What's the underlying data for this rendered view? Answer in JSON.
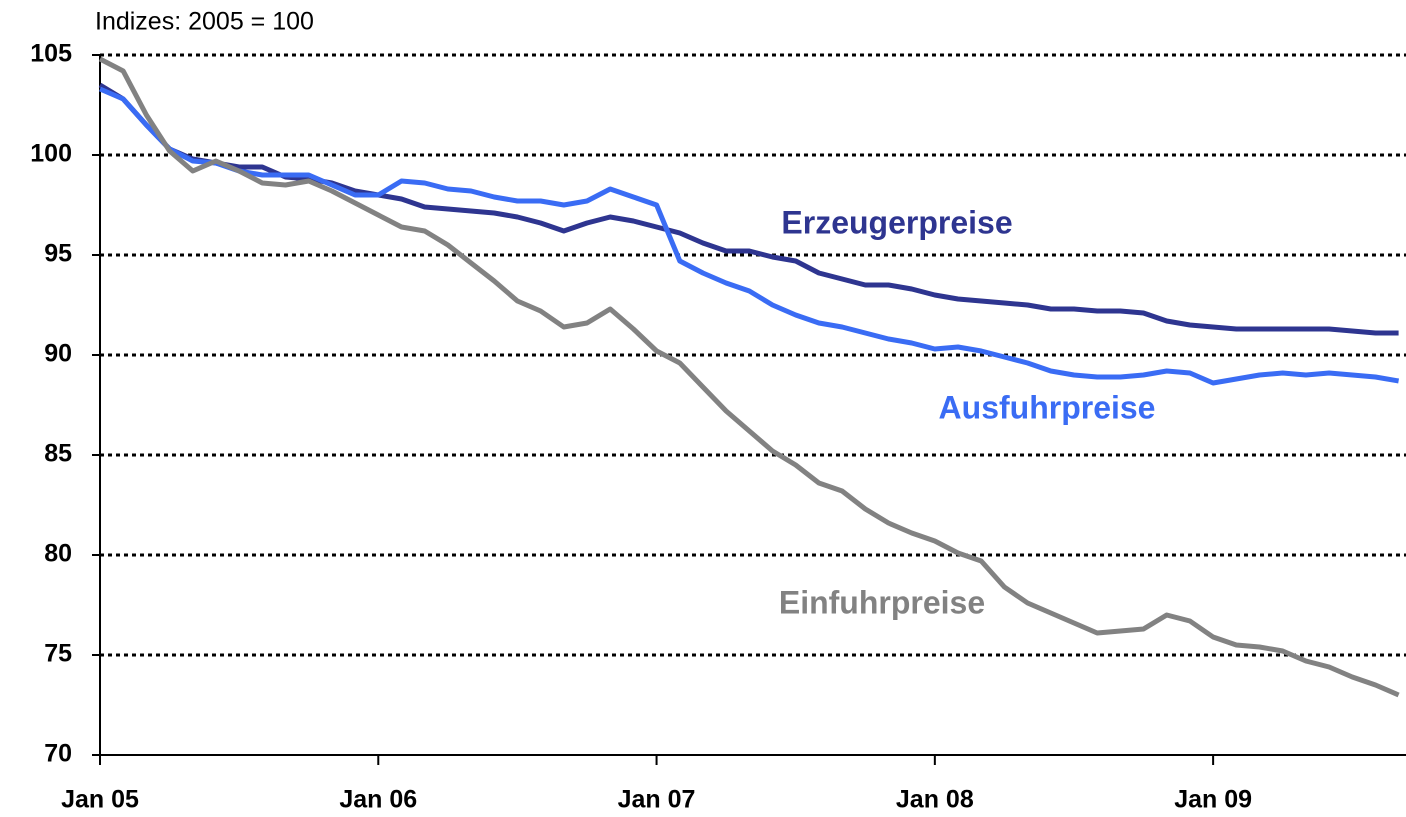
{
  "chart_data": {
    "type": "line",
    "subtitle": "Indizes: 2005 = 100",
    "categories": [
      "Jan 05",
      null,
      null,
      null,
      null,
      null,
      null,
      null,
      null,
      null,
      null,
      null,
      "Jan 06",
      null,
      null,
      null,
      null,
      null,
      null,
      null,
      null,
      null,
      null,
      null,
      "Jan 07",
      null,
      null,
      null,
      null,
      null,
      null,
      null,
      null,
      null,
      null,
      null,
      "Jan 08",
      null,
      null,
      null,
      null,
      null,
      null,
      null,
      null,
      null,
      null,
      null,
      "Jan 09",
      null,
      null,
      null,
      null,
      null,
      null,
      null,
      null
    ],
    "series": [
      {
        "name": "Erzeugerpreise",
        "color": "#2e3590",
        "values": [
          103.5,
          102.8,
          101.5,
          100.3,
          99.8,
          99.6,
          99.4,
          99.4,
          98.9,
          98.8,
          98.6,
          98.2,
          98.0,
          97.8,
          97.4,
          97.3,
          97.2,
          97.1,
          96.9,
          96.6,
          96.2,
          96.6,
          96.9,
          96.7,
          96.4,
          96.1,
          95.6,
          95.2,
          95.2,
          94.9,
          94.7,
          94.1,
          93.8,
          93.5,
          93.5,
          93.3,
          93.0,
          92.8,
          92.7,
          92.6,
          92.5,
          92.3,
          92.3,
          92.2,
          92.2,
          92.1,
          91.7,
          91.5,
          91.4,
          91.3,
          91.3,
          91.3,
          91.3,
          91.3,
          91.2,
          91.1,
          91.1
        ]
      },
      {
        "name": "Ausfuhrpreise",
        "color": "#3a6cf4",
        "values": [
          103.3,
          102.8,
          101.5,
          100.3,
          99.7,
          99.6,
          99.2,
          99.0,
          99.0,
          99.0,
          98.5,
          98.0,
          98.0,
          98.7,
          98.6,
          98.3,
          98.2,
          97.9,
          97.7,
          97.7,
          97.5,
          97.7,
          98.3,
          97.9,
          97.5,
          94.7,
          94.1,
          93.6,
          93.2,
          92.5,
          92.0,
          91.6,
          91.4,
          91.1,
          90.8,
          90.6,
          90.3,
          90.4,
          90.2,
          89.9,
          89.6,
          89.2,
          89.0,
          88.9,
          88.9,
          89.0,
          89.2,
          89.1,
          88.6,
          88.8,
          89.0,
          89.1,
          89.0,
          89.1,
          89.0,
          88.9,
          88.7
        ]
      },
      {
        "name": "Einfuhrpreise",
        "color": "#828282",
        "values": [
          104.8,
          104.2,
          102.0,
          100.2,
          99.2,
          99.7,
          99.2,
          98.6,
          98.5,
          98.7,
          98.2,
          97.6,
          97.0,
          96.4,
          96.2,
          95.5,
          94.6,
          93.7,
          92.7,
          92.2,
          91.4,
          91.6,
          92.3,
          91.3,
          90.2,
          89.6,
          88.4,
          87.2,
          86.2,
          85.2,
          84.5,
          83.6,
          83.2,
          82.3,
          81.6,
          81.1,
          80.7,
          80.1,
          79.7,
          78.4,
          77.6,
          77.1,
          76.6,
          76.1,
          76.2,
          76.3,
          77.0,
          76.7,
          75.9,
          75.5,
          75.4,
          75.2,
          74.7,
          74.4,
          73.9,
          73.5,
          73.0
        ]
      }
    ],
    "ylim": [
      70,
      105
    ],
    "yticks": [
      70,
      75,
      80,
      85,
      90,
      95,
      100,
      105
    ],
    "grid": true
  }
}
